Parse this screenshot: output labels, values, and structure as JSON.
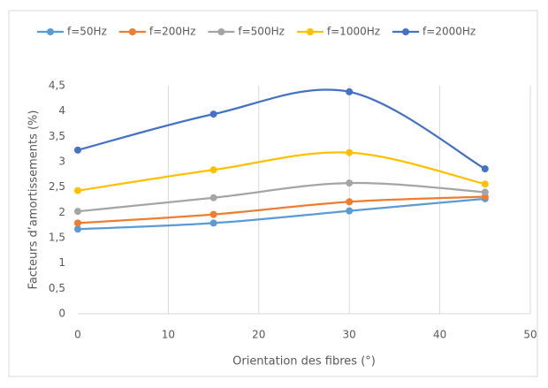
{
  "chart_data": {
    "type": "line",
    "x_label": "Orientation des fibres (°)",
    "y_label": "Facteurs d’amortissements (%)",
    "x": [
      0,
      15,
      30,
      45
    ],
    "series": [
      {
        "name": "f=50Hz",
        "color": "#5b9bd5",
        "values": [
          1.67,
          1.79,
          2.03,
          2.27
        ]
      },
      {
        "name": "f=200Hz",
        "color": "#ed7d31",
        "values": [
          1.79,
          1.96,
          2.21,
          2.31
        ]
      },
      {
        "name": "f=500Hz",
        "color": "#a5a5a5",
        "values": [
          2.02,
          2.29,
          2.58,
          2.4
        ]
      },
      {
        "name": "f=1000Hz",
        "color": "#ffc000",
        "values": [
          2.43,
          2.84,
          3.18,
          2.56
        ]
      },
      {
        "name": "f=2000Hz",
        "color": "#4472c4",
        "values": [
          3.23,
          3.94,
          4.38,
          2.86
        ]
      }
    ],
    "xlim": [
      0,
      50
    ],
    "xticks": [
      0,
      10,
      20,
      30,
      40,
      50
    ],
    "ylim": [
      0,
      4.5
    ],
    "yticks": [
      0,
      {
        "value": 0.5,
        "label": "0,5"
      },
      1,
      {
        "value": 1.5,
        "label": "1,5"
      },
      2,
      {
        "value": 2.5,
        "label": "2,5"
      },
      3,
      {
        "value": 3.5,
        "label": "3,5"
      },
      4,
      {
        "value": 4.5,
        "label": "4,5"
      }
    ],
    "grid": "x",
    "smooth": true
  }
}
